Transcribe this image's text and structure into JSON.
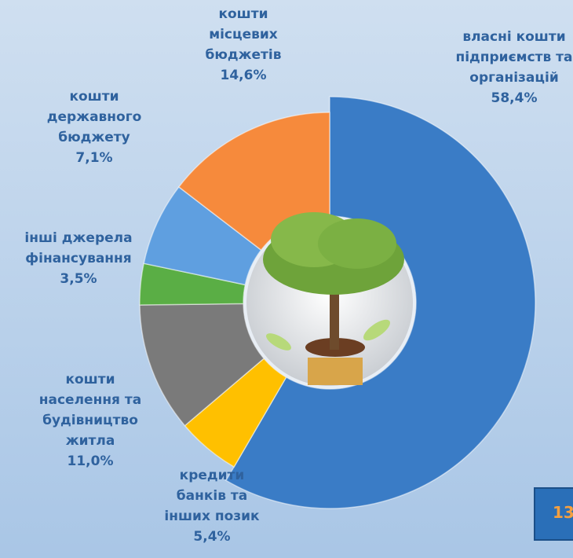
{
  "chart_data": {
    "type": "donut",
    "categories": [
      "власні кошти підприємств та організацій",
      "кредити банків та інших позик",
      "кошти населення та будівництво житла",
      "інші джерела фінансування",
      "кошти державного бюджету",
      "кошти місцевих бюджетів"
    ],
    "values": [
      58.4,
      5.4,
      11.0,
      3.5,
      7.1,
      14.6
    ],
    "value_labels": [
      "58,4%",
      "5,4%",
      "11,0%",
      "3,5%",
      "7,1%",
      "14,6%"
    ],
    "colors": [
      "#3a7cc6",
      "#ffc000",
      "#7a7a7a",
      "#5aae45",
      "#5f9fe0",
      "#f68a3c"
    ]
  },
  "page_number": "13"
}
